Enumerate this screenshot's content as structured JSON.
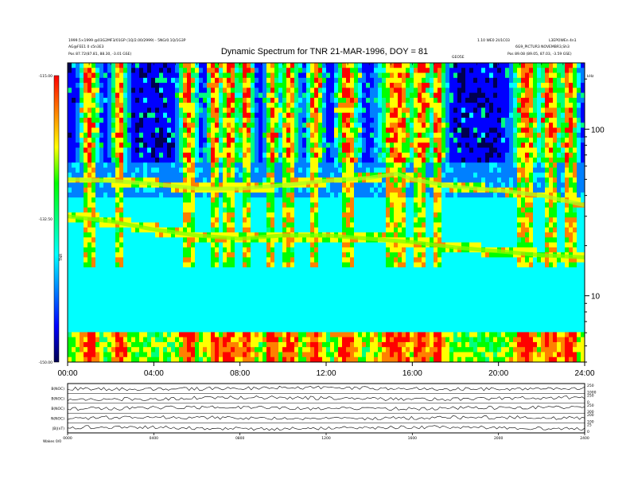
{
  "header": {
    "left_line1": "1999.5×1999 @03G2MF3/01GP (1Q/2.00/2999) - 5NG/0.1Q/1G3P",
    "left_line2": "AG@FEE1 0 s5n3E3",
    "left_line3": "Pos  87.72(87.81, 88.30, -3.01 GSE)",
    "right_line1": "1.10 WE0 2U1C03",
    "right_line2": "L3EPOWEn 4n1",
    "right_line3": "6G9_PICTUR3 NOVEMBR3,Sh3",
    "right_line4": "Pos  89.08 (89.05, 87.03, -3.59 GSE)",
    "mid_label": "GEO5E"
  },
  "chart_data": {
    "type": "heatmap",
    "title": "Dynamic Spectrum for TNR 21-MAR-1996, DOY = 81",
    "x_ticks": [
      "00:00",
      "04:00",
      "08:00",
      "12:00",
      "16:00",
      "20:00",
      "24:00"
    ],
    "xlim": [
      0,
      24
    ],
    "y_scale": "log",
    "y_ticks": [
      "100",
      "10"
    ],
    "ylim": [
      4,
      250
    ],
    "y_unit": "kHz",
    "colorbar": {
      "ticks": [
        "-115.00",
        "-132.50",
        "-150.00"
      ],
      "range": [
        -150,
        -115
      ],
      "label": "TNR",
      "colors": [
        "#000050",
        "#0000ff",
        "#0080ff",
        "#00ffff",
        "#00ff80",
        "#00ff00",
        "#ffff00",
        "#ff8000",
        "#ff0000"
      ]
    },
    "emission_lines": [
      {
        "name": "upper",
        "points": [
          [
            0,
            50
          ],
          [
            2,
            49
          ],
          [
            4,
            47
          ],
          [
            6,
            44
          ],
          [
            8,
            44
          ],
          [
            10,
            46
          ],
          [
            12,
            49
          ],
          [
            14,
            51
          ],
          [
            15.3,
            54
          ],
          [
            16,
            50
          ],
          [
            18,
            45
          ],
          [
            20,
            43
          ],
          [
            22,
            40
          ],
          [
            24,
            35
          ]
        ]
      },
      {
        "name": "lower",
        "points": [
          [
            0,
            30
          ],
          [
            2,
            28
          ],
          [
            4,
            25
          ],
          [
            6,
            23
          ],
          [
            8,
            22
          ],
          [
            10,
            23
          ],
          [
            12,
            23
          ],
          [
            14,
            22
          ],
          [
            16,
            21
          ],
          [
            18,
            19.5
          ],
          [
            20,
            18.5
          ],
          [
            22,
            17.5
          ],
          [
            24,
            17
          ]
        ]
      }
    ],
    "bursts": [
      [
        1.0,
        0.4
      ],
      [
        2.4,
        0.35
      ],
      [
        5.6,
        0.4
      ],
      [
        6.8,
        0.3
      ],
      [
        7.5,
        0.45
      ],
      [
        8.3,
        0.35
      ],
      [
        9.5,
        0.3
      ],
      [
        10.3,
        0.4
      ],
      [
        11.5,
        0.35
      ],
      [
        13.0,
        0.5
      ],
      [
        15.3,
        0.8
      ],
      [
        16.4,
        0.5
      ],
      [
        17.2,
        0.35
      ],
      [
        21.3,
        0.6
      ],
      [
        22.4,
        0.5
      ],
      [
        23.3,
        0.4
      ]
    ]
  },
  "bottom_panels": {
    "labels": [
      "B(NOC)",
      "B(NOC)",
      "B(NOC)",
      "N(NOC)",
      "|B|(nT)"
    ],
    "right_ticks": [
      [
        "250",
        "1000"
      ],
      [
        "250",
        "0"
      ],
      [
        "250",
        "300"
      ],
      [
        "200",
        "100"
      ],
      [
        "25",
        "0"
      ]
    ],
    "x_ticks": [
      "0000",
      "0400",
      "0800",
      "1200",
      "1600",
      "2000",
      "2400"
    ],
    "footer": "Wakes  0/0"
  }
}
